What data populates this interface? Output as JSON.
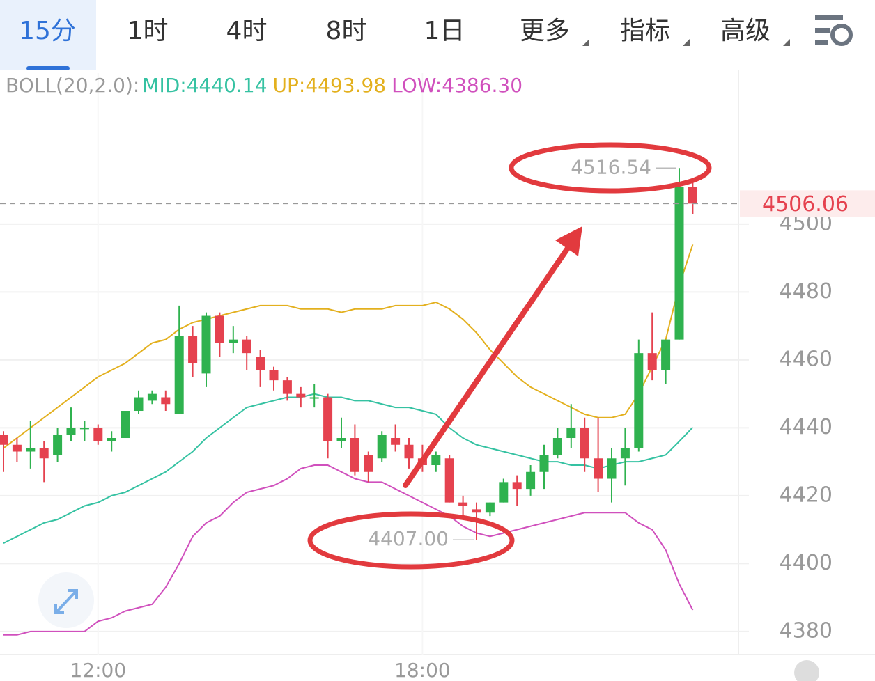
{
  "tabs": [
    "15分",
    "1时",
    "4时",
    "8时",
    "1日",
    "更多",
    "指标",
    "高级"
  ],
  "chart_data": {
    "type": "candlestick",
    "indicator_title": "BOLL(20,2.0):",
    "categories": [
      null,
      null,
      null,
      null,
      null,
      null,
      null,
      "12:00",
      null,
      null,
      null,
      null,
      null,
      null,
      null,
      null,
      null,
      null,
      null,
      null,
      null,
      null,
      null,
      null,
      null,
      null,
      null,
      null,
      null,
      null,
      null,
      "18:00",
      null,
      null,
      null,
      null,
      null,
      null,
      null,
      null,
      null,
      null,
      null,
      null,
      null,
      null,
      null,
      null,
      null,
      null,
      null,
      null
    ],
    "open": [
      4438,
      4435,
      4433,
      4434,
      4432,
      4438,
      4440,
      4440,
      4436,
      4437,
      4445,
      4448,
      4449,
      4444,
      4467,
      4456,
      4473,
      4465,
      4466,
      4461,
      4457,
      4454,
      4450,
      4449,
      4449,
      4436,
      4437,
      4432,
      4431,
      4437,
      4435,
      4431,
      4429,
      4431,
      4418,
      4416,
      4415,
      4418,
      4424,
      4422,
      4427,
      4432,
      4437,
      4440,
      4431,
      4425,
      4431,
      4434,
      4462,
      4457,
      4466,
      4511
    ],
    "high": [
      4439,
      4437,
      4442,
      4436,
      4440,
      4446,
      4442,
      4441,
      4439,
      4445,
      4451,
      4451,
      4451,
      4476,
      4470,
      4474,
      4474,
      4470,
      4467,
      4463,
      4458,
      4455,
      4452,
      4453,
      4450,
      4443,
      4441,
      4433,
      4439,
      4441,
      4437,
      4435,
      4433,
      4432,
      4420,
      4418,
      4418,
      4425,
      4426,
      4429,
      4435,
      4440,
      4447,
      4443,
      4443,
      4434,
      4440,
      4466,
      4474,
      4466,
      4516.54,
      4513
    ],
    "low": [
      4427,
      4430,
      4428,
      4424,
      4430,
      4436,
      4436,
      4435,
      4433,
      4437,
      4444,
      4447,
      4445,
      4444,
      4455,
      4452,
      4461,
      4462,
      4457,
      4452,
      4451,
      4448,
      4446,
      4446,
      4431,
      4434,
      4426,
      4424,
      4430,
      4433,
      4428,
      4427,
      4427,
      4418,
      4414,
      4407,
      4414,
      4418,
      4417,
      4420,
      4422,
      4431,
      4434,
      4427,
      4421,
      4418,
      4423,
      4433,
      4454,
      4453,
      4466,
      4503
    ],
    "close": [
      4435,
      4433,
      4434,
      4431,
      4438,
      4440,
      4440,
      4436,
      4437,
      4445,
      4449,
      4450,
      4447,
      4467,
      4459,
      4473,
      4465,
      4466,
      4462,
      4457,
      4454,
      4450,
      4449,
      4449,
      4436,
      4437,
      4427,
      4427,
      4438,
      4435,
      4431,
      4429,
      4432,
      4418,
      4417,
      4415,
      4418,
      4424,
      4422,
      4427,
      4432,
      4437,
      4440,
      4431,
      4425,
      4431,
      4434,
      4462,
      4457,
      4466,
      4511,
      4506.06
    ],
    "up_color": "#2fb24f",
    "down_color": "#e5424f",
    "series": [
      {
        "name": "MID:",
        "color": "#35c2a2",
        "values": [
          4406,
          4408,
          4410,
          4412,
          4413,
          4415,
          4417,
          4418,
          4420,
          4421,
          4423,
          4425,
          4427,
          4430,
          4433,
          4437,
          4440,
          4443,
          4446,
          4447,
          4448,
          4449,
          4449,
          4450,
          4449,
          4449,
          4448,
          4448,
          4447,
          4446,
          4446,
          4445,
          4444,
          4440,
          4437,
          4435,
          4434,
          4433,
          4432,
          4431,
          4430,
          4430,
          4429,
          4429,
          4428,
          4429,
          4430,
          4430,
          4431,
          4432,
          4436,
          4440.14
        ],
        "value_labels": [
          null,
          null,
          null,
          null,
          null,
          null,
          null,
          null,
          null,
          null,
          null,
          null,
          null,
          null,
          null,
          null,
          null,
          null,
          null,
          null,
          null,
          null,
          null,
          null,
          null,
          null,
          null,
          null,
          null,
          null,
          null,
          null,
          null,
          null,
          null,
          null,
          null,
          null,
          null,
          null,
          null,
          null,
          null,
          null,
          null,
          null,
          null,
          null,
          null,
          null,
          null,
          "4440.14"
        ]
      },
      {
        "name": "UP:",
        "color": "#e3b01e",
        "values": [
          4434,
          4437,
          4440,
          4443,
          4446,
          4449,
          4452,
          4455,
          4457,
          4459,
          4462,
          4465,
          4466,
          4469,
          4471,
          4472,
          4473,
          4474,
          4475,
          4476,
          4476,
          4476,
          4475,
          4475,
          4475,
          4474,
          4475,
          4475,
          4475,
          4476,
          4476,
          4476,
          4477,
          4475,
          4472,
          4468,
          4463,
          4459,
          4455,
          4452,
          4450,
          4448,
          4446,
          4444,
          4443,
          4443,
          4444,
          4450,
          4458,
          4466,
          4482,
          4493.98
        ],
        "value_labels": [
          null,
          null,
          null,
          null,
          null,
          null,
          null,
          null,
          null,
          null,
          null,
          null,
          null,
          null,
          null,
          null,
          null,
          null,
          null,
          null,
          null,
          null,
          null,
          null,
          null,
          null,
          null,
          null,
          null,
          null,
          null,
          null,
          null,
          null,
          null,
          null,
          null,
          null,
          null,
          null,
          null,
          null,
          null,
          null,
          null,
          null,
          null,
          null,
          null,
          null,
          null,
          "4493.98"
        ]
      },
      {
        "name": "LOW:",
        "color": "#d050bd",
        "values": [
          4379,
          4379,
          4380,
          4380,
          4380,
          4380,
          4380,
          4383,
          4384,
          4386,
          4387,
          4388,
          4393,
          4400,
          4408,
          4412,
          4414,
          4418,
          4421,
          4422,
          4423,
          4425,
          4428,
          4429,
          4429,
          4427,
          4425,
          4424,
          4424,
          4422,
          4420,
          4418,
          4416,
          4414,
          4411,
          4409,
          4408,
          4409,
          4410,
          4411,
          4412,
          4413,
          4414,
          4415,
          4415,
          4415,
          4415,
          4412,
          4410,
          4404,
          4394,
          4386.3
        ],
        "value_labels": [
          null,
          null,
          null,
          null,
          null,
          null,
          null,
          null,
          null,
          null,
          null,
          null,
          null,
          null,
          null,
          null,
          null,
          null,
          null,
          null,
          null,
          null,
          null,
          null,
          null,
          null,
          null,
          null,
          null,
          null,
          null,
          null,
          null,
          null,
          null,
          null,
          null,
          null,
          null,
          null,
          null,
          null,
          null,
          null,
          null,
          null,
          null,
          null,
          null,
          null,
          null,
          "4386.30"
        ]
      }
    ],
    "ylim": [
      4373.2,
      4544.5
    ],
    "yticks": [
      4380,
      4400,
      4420,
      4440,
      4460,
      4480,
      4500
    ],
    "grid": true,
    "annotations": [
      {
        "value": 4516.54,
        "label": "4516.54"
      },
      {
        "value": 4407,
        "label": "4407.00"
      }
    ],
    "last_price": 4506.06
  }
}
